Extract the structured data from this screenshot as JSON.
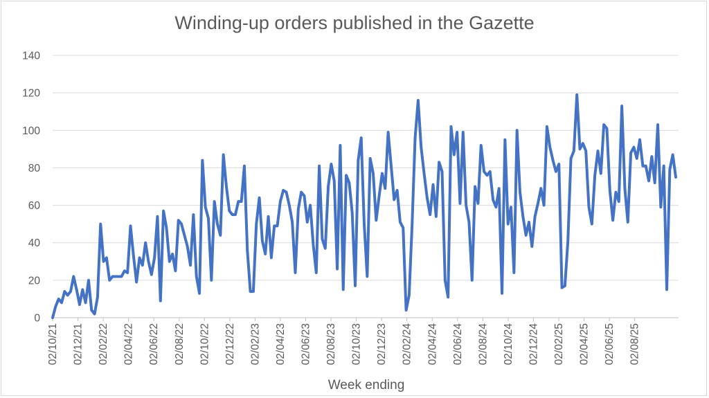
{
  "chart_data": {
    "type": "line",
    "title": "Winding-up orders published in the Gazette",
    "xlabel": "Week ending",
    "ylabel": "",
    "ylim": [
      0,
      140
    ],
    "yticks": [
      "0",
      "20",
      "40",
      "60",
      "80",
      "100",
      "120",
      "140"
    ],
    "xtick_labels": [
      "02/10/21",
      "02/12/21",
      "02/02/22",
      "02/04/22",
      "02/06/22",
      "02/08/22",
      "02/10/22",
      "02/12/22",
      "02/02/23",
      "02/04/23",
      "02/06/23",
      "02/08/23",
      "02/10/23",
      "02/12/23",
      "02/02/24",
      "02/04/24",
      "02/06/24",
      "02/08/24",
      "02/10/24",
      "02/12/24",
      "02/02/25",
      "02/04/25",
      "02/06/25",
      "02/08/25"
    ],
    "grid": true,
    "color": "#4472c4",
    "series": [
      {
        "values": [
          0,
          6,
          10,
          8,
          14,
          12,
          14,
          22,
          15,
          7,
          15,
          8,
          20,
          4,
          2,
          11,
          50,
          30,
          32,
          20,
          22,
          22,
          22,
          22,
          25,
          24,
          49,
          33,
          19,
          32,
          28,
          40,
          30,
          23,
          32,
          54,
          9,
          57,
          48,
          30,
          34,
          25,
          52,
          50,
          44,
          38,
          28,
          55,
          22,
          13,
          84,
          59,
          53,
          20,
          62,
          50,
          44,
          87,
          70,
          57,
          55,
          55,
          62,
          62,
          81,
          36,
          14,
          14,
          50,
          64,
          41,
          34,
          54,
          32,
          49,
          49,
          62,
          68,
          67,
          60,
          51,
          24,
          58,
          67,
          65,
          51,
          60,
          39,
          24,
          81,
          42,
          37,
          70,
          82,
          73,
          26,
          92,
          15,
          76,
          72,
          56,
          17,
          84,
          96,
          50,
          22,
          85,
          77,
          52,
          65,
          77,
          69,
          99,
          81,
          63,
          68,
          51,
          48,
          4,
          12,
          50,
          96,
          116,
          91,
          77,
          64,
          55,
          71,
          54,
          83,
          78,
          20,
          11,
          102,
          87,
          99,
          61,
          99,
          60,
          51,
          20,
          70,
          61,
          92,
          78,
          76,
          78,
          63,
          59,
          69,
          13,
          95,
          50,
          59,
          24,
          100,
          67,
          54,
          44,
          51,
          38,
          54,
          61,
          69,
          60,
          102,
          91,
          84,
          78,
          82,
          16,
          17,
          41,
          85,
          89,
          119,
          90,
          93,
          89,
          59,
          50,
          76,
          89,
          77,
          103,
          101,
          68,
          52,
          67,
          62,
          113,
          69,
          51,
          88,
          91,
          85,
          95,
          81,
          81,
          73,
          86,
          72,
          103,
          59,
          81,
          15,
          79,
          87,
          75
        ]
      }
    ]
  }
}
